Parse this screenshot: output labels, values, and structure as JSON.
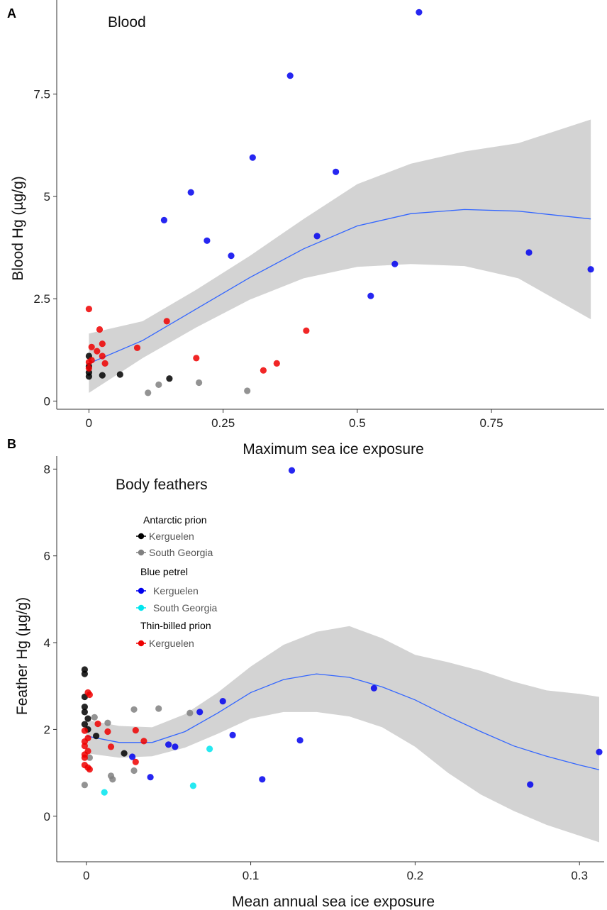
{
  "colors": {
    "ap_kerguelen": "#000000",
    "ap_south_georgia": "#808080",
    "bp_kerguelen": "#0000ee",
    "bp_south_georgia": "#00e5ee",
    "tbp_kerguelen": "#ee0000",
    "smooth_line": "#3366ff",
    "ci_band": "#d3d3d3"
  },
  "chart_data": [
    {
      "type": "scatter",
      "panel_label": "A",
      "title": "Blood",
      "xlabel": "Maximum sea ice exposure",
      "ylabel": "Blood Hg (µg/g)",
      "xlim": [
        -0.06,
        0.96
      ],
      "ylim": [
        -0.2,
        9.8
      ],
      "xticks": [
        0,
        0.25,
        0.5,
        0.75
      ],
      "xtick_labels": [
        "0",
        "0.25",
        "0.5",
        "0.75"
      ],
      "yticks": [
        0,
        2.5,
        5,
        7.5
      ],
      "ytick_labels": [
        "0",
        "2.5",
        "5",
        "7.5"
      ],
      "grid": false,
      "series": [
        {
          "key": "ap_kerguelen",
          "points": [
            [
              0,
              1.1
            ],
            [
              0,
              0.85
            ],
            [
              0,
              0.7
            ],
            [
              0,
              0.6
            ],
            [
              0.025,
              0.63
            ],
            [
              0.058,
              0.65
            ],
            [
              0.15,
              0.55
            ]
          ]
        },
        {
          "key": "ap_south_georgia",
          "points": [
            [
              0.11,
              0.2
            ],
            [
              0.13,
              0.4
            ],
            [
              0.205,
              0.45
            ],
            [
              0.295,
              0.25
            ]
          ]
        },
        {
          "key": "bp_kerguelen",
          "points": [
            [
              0.615,
              9.5
            ],
            [
              0.375,
              7.95
            ],
            [
              0.305,
              5.95
            ],
            [
              0.46,
              5.6
            ],
            [
              0.19,
              5.1
            ],
            [
              0.14,
              4.42
            ],
            [
              0.22,
              3.92
            ],
            [
              0.265,
              3.55
            ],
            [
              0.425,
              4.03
            ],
            [
              0.57,
              3.35
            ],
            [
              0.82,
              3.63
            ],
            [
              0.935,
              3.22
            ],
            [
              0.525,
              2.57
            ]
          ]
        },
        {
          "key": "tbp_kerguelen",
          "points": [
            [
              0,
              2.25
            ],
            [
              0.02,
              1.75
            ],
            [
              0.025,
              1.4
            ],
            [
              0.015,
              1.22
            ],
            [
              0.005,
              1.32
            ],
            [
              0.025,
              1.1
            ],
            [
              0.03,
              0.92
            ],
            [
              0.005,
              1.0
            ],
            [
              0,
              0.95
            ],
            [
              0,
              0.8
            ],
            [
              0.09,
              1.3
            ],
            [
              0.145,
              1.95
            ],
            [
              0.2,
              1.05
            ],
            [
              0.325,
              0.75
            ],
            [
              0.35,
              0.92
            ],
            [
              0.405,
              1.72
            ]
          ]
        }
      ],
      "smooth": {
        "fit": [
          [
            0,
            0.92
          ],
          [
            0.1,
            1.48
          ],
          [
            0.2,
            2.25
          ],
          [
            0.3,
            3.02
          ],
          [
            0.4,
            3.72
          ],
          [
            0.5,
            4.28
          ],
          [
            0.6,
            4.58
          ],
          [
            0.7,
            4.68
          ],
          [
            0.8,
            4.64
          ],
          [
            0.935,
            4.45
          ]
        ],
        "lower": [
          [
            0,
            0.2
          ],
          [
            0.1,
            1.05
          ],
          [
            0.2,
            1.8
          ],
          [
            0.3,
            2.48
          ],
          [
            0.4,
            3.0
          ],
          [
            0.5,
            3.28
          ],
          [
            0.6,
            3.35
          ],
          [
            0.7,
            3.3
          ],
          [
            0.8,
            3.0
          ],
          [
            0.935,
            2.0
          ]
        ],
        "upper": [
          [
            0,
            1.65
          ],
          [
            0.1,
            1.95
          ],
          [
            0.2,
            2.72
          ],
          [
            0.3,
            3.55
          ],
          [
            0.4,
            4.45
          ],
          [
            0.5,
            5.3
          ],
          [
            0.6,
            5.8
          ],
          [
            0.7,
            6.1
          ],
          [
            0.8,
            6.3
          ],
          [
            0.935,
            6.88
          ]
        ]
      }
    },
    {
      "type": "scatter",
      "panel_label": "B",
      "title": "Body feathers",
      "xlabel": "Mean annual sea ice exposure",
      "ylabel": "Feather Hg (µg/g)",
      "xlim": [
        -0.018,
        0.315
      ],
      "ylim": [
        -1.05,
        8.3
      ],
      "xticks": [
        0,
        0.1,
        0.2,
        0.3
      ],
      "xtick_labels": [
        "0",
        "0.1",
        "0.2",
        "0.3"
      ],
      "yticks": [
        0,
        2,
        4,
        6,
        8
      ],
      "ytick_labels": [
        "0",
        "2",
        "4",
        "6",
        "8"
      ],
      "grid": false,
      "legend": {
        "position": "top-left",
        "groups": [
          {
            "title": "Antarctic prion",
            "items": [
              {
                "label": "Kerguelen",
                "key": "ap_kerguelen"
              },
              {
                "label": "South Georgia",
                "key": "ap_south_georgia"
              }
            ]
          },
          {
            "title": "Blue petrel",
            "items": [
              {
                "label": "Kerguelen",
                "key": "bp_kerguelen"
              },
              {
                "label": "South Georgia",
                "key": "bp_south_georgia"
              }
            ]
          },
          {
            "title": "Thin-billed prion",
            "items": [
              {
                "label": "Kerguelen",
                "key": "tbp_kerguelen"
              }
            ]
          }
        ]
      },
      "series": [
        {
          "key": "ap_kerguelen",
          "points": [
            [
              -0.001,
              3.38
            ],
            [
              -0.001,
              3.28
            ],
            [
              -0.001,
              2.75
            ],
            [
              -0.001,
              2.52
            ],
            [
              -0.001,
              2.4
            ],
            [
              0.001,
              2.25
            ],
            [
              -0.001,
              2.12
            ],
            [
              0.001,
              2.0
            ],
            [
              0.006,
              1.85
            ],
            [
              0.023,
              1.45
            ]
          ]
        },
        {
          "key": "ap_south_georgia",
          "points": [
            [
              -0.001,
              0.72
            ],
            [
              0.002,
              1.35
            ],
            [
              0.005,
              2.28
            ],
            [
              0.013,
              2.15
            ],
            [
              0.015,
              0.93
            ],
            [
              0.016,
              0.85
            ],
            [
              0.029,
              2.46
            ],
            [
              0.029,
              1.05
            ],
            [
              0.044,
              2.48
            ],
            [
              0.063,
              2.38
            ]
          ]
        },
        {
          "key": "bp_kerguelen",
          "points": [
            [
              0.125,
              7.97
            ],
            [
              0.083,
              2.65
            ],
            [
              0.069,
              2.4
            ],
            [
              0.089,
              1.87
            ],
            [
              0.05,
              1.65
            ],
            [
              0.054,
              1.6
            ],
            [
              0.028,
              1.37
            ],
            [
              0.039,
              0.9
            ],
            [
              0.107,
              0.85
            ],
            [
              0.13,
              1.75
            ],
            [
              0.175,
              2.95
            ],
            [
              0.27,
              0.73
            ],
            [
              0.312,
              1.48
            ]
          ]
        },
        {
          "key": "bp_south_georgia",
          "points": [
            [
              0.011,
              0.55
            ],
            [
              0.065,
              0.7
            ],
            [
              0.075,
              1.55
            ]
          ]
        },
        {
          "key": "tbp_kerguelen",
          "points": [
            [
              0.001,
              2.85
            ],
            [
              0.002,
              2.8
            ],
            [
              0.007,
              2.13
            ],
            [
              -0.001,
              1.97
            ],
            [
              0.001,
              1.8
            ],
            [
              -0.001,
              1.72
            ],
            [
              -0.001,
              1.62
            ],
            [
              0.001,
              1.5
            ],
            [
              -0.001,
              1.42
            ],
            [
              -0.001,
              1.35
            ],
            [
              -0.001,
              1.18
            ],
            [
              0.001,
              1.12
            ],
            [
              0.002,
              1.08
            ],
            [
              0.013,
              1.95
            ],
            [
              0.015,
              1.6
            ],
            [
              0.03,
              1.98
            ],
            [
              0.035,
              1.73
            ],
            [
              0.03,
              1.25
            ]
          ]
        }
      ],
      "smooth": {
        "fit": [
          [
            0,
            1.85
          ],
          [
            0.02,
            1.7
          ],
          [
            0.04,
            1.7
          ],
          [
            0.06,
            1.95
          ],
          [
            0.08,
            2.38
          ],
          [
            0.1,
            2.85
          ],
          [
            0.12,
            3.15
          ],
          [
            0.14,
            3.28
          ],
          [
            0.16,
            3.2
          ],
          [
            0.18,
            2.98
          ],
          [
            0.2,
            2.68
          ],
          [
            0.22,
            2.3
          ],
          [
            0.24,
            1.95
          ],
          [
            0.26,
            1.62
          ],
          [
            0.28,
            1.38
          ],
          [
            0.3,
            1.18
          ],
          [
            0.312,
            1.07
          ]
        ],
        "lower": [
          [
            0,
            1.45
          ],
          [
            0.02,
            1.35
          ],
          [
            0.04,
            1.38
          ],
          [
            0.06,
            1.58
          ],
          [
            0.08,
            1.9
          ],
          [
            0.1,
            2.25
          ],
          [
            0.12,
            2.4
          ],
          [
            0.14,
            2.4
          ],
          [
            0.16,
            2.3
          ],
          [
            0.18,
            2.05
          ],
          [
            0.2,
            1.6
          ],
          [
            0.22,
            1.0
          ],
          [
            0.24,
            0.5
          ],
          [
            0.26,
            0.12
          ],
          [
            0.28,
            -0.2
          ],
          [
            0.3,
            -0.45
          ],
          [
            0.312,
            -0.6
          ]
        ],
        "upper": [
          [
            0,
            2.22
          ],
          [
            0.02,
            2.08
          ],
          [
            0.04,
            2.05
          ],
          [
            0.06,
            2.35
          ],
          [
            0.08,
            2.85
          ],
          [
            0.1,
            3.45
          ],
          [
            0.12,
            3.95
          ],
          [
            0.14,
            4.25
          ],
          [
            0.16,
            4.38
          ],
          [
            0.18,
            4.1
          ],
          [
            0.2,
            3.72
          ],
          [
            0.22,
            3.55
          ],
          [
            0.24,
            3.35
          ],
          [
            0.26,
            3.1
          ],
          [
            0.28,
            2.9
          ],
          [
            0.3,
            2.82
          ],
          [
            0.312,
            2.75
          ]
        ]
      }
    }
  ]
}
